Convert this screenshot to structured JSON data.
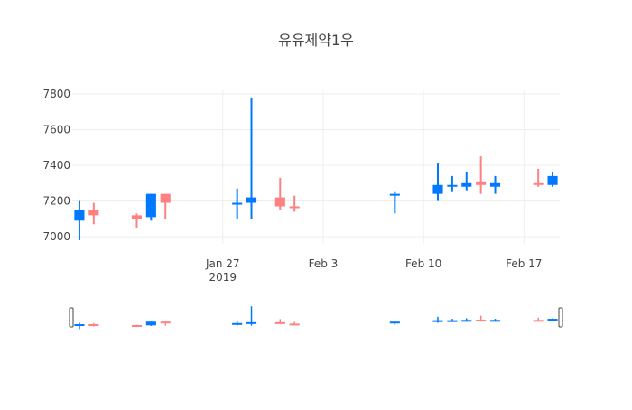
{
  "chart_data": {
    "type": "candlestick",
    "title": "유유제약1우",
    "xlabel": "",
    "ylabel": "",
    "ylim": [
      6960,
      7820
    ],
    "xlim": [
      "2019-01-17",
      "2019-02-19"
    ],
    "yticks": [
      7000,
      7200,
      7400,
      7600,
      7800
    ],
    "xticks": [
      {
        "date": "2019-01-27",
        "label": "Jan 27",
        "sublabel": "2019"
      },
      {
        "date": "2019-02-03",
        "label": "Feb 3",
        "sublabel": ""
      },
      {
        "date": "2019-02-10",
        "label": "Feb 10",
        "sublabel": ""
      },
      {
        "date": "2019-02-17",
        "label": "Feb 17",
        "sublabel": ""
      }
    ],
    "grid": true,
    "rangeslider": true,
    "colors": {
      "increasing": "#ff8080",
      "decreasing": "#0078ff",
      "grid": "#eeeeee"
    },
    "candles": [
      {
        "date": "2019-01-17",
        "open": 7150,
        "high": 7200,
        "low": 6980,
        "close": 7090
      },
      {
        "date": "2019-01-18",
        "open": 7120,
        "high": 7190,
        "low": 7070,
        "close": 7150
      },
      {
        "date": "2019-01-21",
        "open": 7100,
        "high": 7130,
        "low": 7050,
        "close": 7120
      },
      {
        "date": "2019-01-22",
        "open": 7240,
        "high": 7240,
        "low": 7090,
        "close": 7110
      },
      {
        "date": "2019-01-23",
        "open": 7190,
        "high": 7240,
        "low": 7100,
        "close": 7240
      },
      {
        "date": "2019-01-28",
        "open": 7190,
        "high": 7270,
        "low": 7100,
        "close": 7180
      },
      {
        "date": "2019-01-29",
        "open": 7220,
        "high": 7780,
        "low": 7100,
        "close": 7190
      },
      {
        "date": "2019-01-31",
        "open": 7170,
        "high": 7330,
        "low": 7150,
        "close": 7220
      },
      {
        "date": "2019-02-01",
        "open": 7170,
        "high": 7230,
        "low": 7140,
        "close": 7170
      },
      {
        "date": "2019-02-08",
        "open": 7240,
        "high": 7250,
        "low": 7130,
        "close": 7230
      },
      {
        "date": "2019-02-11",
        "open": 7290,
        "high": 7410,
        "low": 7200,
        "close": 7240
      },
      {
        "date": "2019-02-12",
        "open": 7290,
        "high": 7340,
        "low": 7250,
        "close": 7280
      },
      {
        "date": "2019-02-13",
        "open": 7300,
        "high": 7360,
        "low": 7260,
        "close": 7280
      },
      {
        "date": "2019-02-14",
        "open": 7290,
        "high": 7450,
        "low": 7240,
        "close": 7310
      },
      {
        "date": "2019-02-15",
        "open": 7300,
        "high": 7340,
        "low": 7240,
        "close": 7280
      },
      {
        "date": "2019-02-18",
        "open": 7290,
        "high": 7380,
        "low": 7280,
        "close": 7300
      },
      {
        "date": "2019-02-19",
        "open": 7340,
        "high": 7360,
        "low": 7280,
        "close": 7290
      }
    ]
  }
}
